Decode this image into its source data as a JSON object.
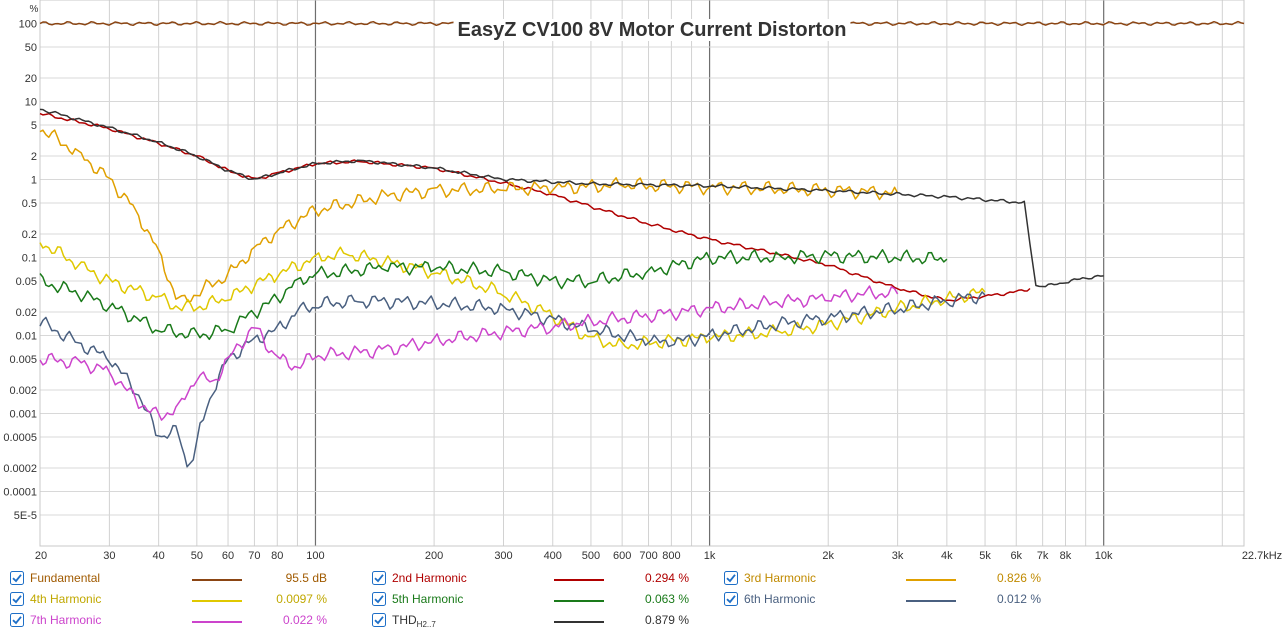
{
  "chart_data": {
    "type": "line",
    "title": "EasyZ CV100 8V Motor Current Distorton",
    "ylabel": "%",
    "xscale": "log",
    "yscale": "log",
    "xlim": [
      20,
      22700
    ],
    "ylim": [
      2e-05,
      200
    ],
    "grid": true,
    "legend_position": "bottom",
    "x_ticks": [
      {
        "v": 20,
        "t": "20"
      },
      {
        "v": 30,
        "t": "30"
      },
      {
        "v": 40,
        "t": "40"
      },
      {
        "v": 50,
        "t": "50"
      },
      {
        "v": 60,
        "t": "60"
      },
      {
        "v": 70,
        "t": "70"
      },
      {
        "v": 80,
        "t": "80"
      },
      {
        "v": 100,
        "t": "100"
      },
      {
        "v": 200,
        "t": "200"
      },
      {
        "v": 300,
        "t": "300"
      },
      {
        "v": 400,
        "t": "400"
      },
      {
        "v": 500,
        "t": "500"
      },
      {
        "v": 600,
        "t": "600"
      },
      {
        "v": 700,
        "t": "700"
      },
      {
        "v": 800,
        "t": "800"
      },
      {
        "v": 1000,
        "t": "1k"
      },
      {
        "v": 2000,
        "t": "2k"
      },
      {
        "v": 3000,
        "t": "3k"
      },
      {
        "v": 4000,
        "t": "4k"
      },
      {
        "v": 5000,
        "t": "5k"
      },
      {
        "v": 6000,
        "t": "6k"
      },
      {
        "v": 7000,
        "t": "7k"
      },
      {
        "v": 8000,
        "t": "8k"
      },
      {
        "v": 10000,
        "t": "10k"
      },
      {
        "v": 22700,
        "t": "22.7kHz"
      }
    ],
    "y_ticks": [
      {
        "v": 100,
        "t": "100"
      },
      {
        "v": 50,
        "t": "50"
      },
      {
        "v": 20,
        "t": "20"
      },
      {
        "v": 10,
        "t": "10"
      },
      {
        "v": 5,
        "t": "5"
      },
      {
        "v": 2,
        "t": "2"
      },
      {
        "v": 1,
        "t": "1"
      },
      {
        "v": 0.5,
        "t": "0.5"
      },
      {
        "v": 0.2,
        "t": "0.2"
      },
      {
        "v": 0.1,
        "t": "0.1"
      },
      {
        "v": 0.05,
        "t": "0.05"
      },
      {
        "v": 0.02,
        "t": "0.02"
      },
      {
        "v": 0.01,
        "t": "0.01"
      },
      {
        "v": 0.005,
        "t": "0.005"
      },
      {
        "v": 0.002,
        "t": "0.002"
      },
      {
        "v": 0.001,
        "t": "0.001"
      },
      {
        "v": 0.0005,
        "t": "0.0005"
      },
      {
        "v": 0.0002,
        "t": "0.0002"
      },
      {
        "v": 0.0001,
        "t": "0.0001"
      },
      {
        "v": 5e-05,
        "t": "5E-5"
      }
    ],
    "series": [
      {
        "name": "Fundamental",
        "color": "#8B4513",
        "legend_value": "95.5 dB",
        "points": [
          [
            20,
            100
          ],
          [
            22700,
            100
          ]
        ]
      },
      {
        "name": "2nd Harmonic",
        "color": "#b00000",
        "legend_value": "0.294 %",
        "points": [
          [
            20,
            7
          ],
          [
            30,
            4.5
          ],
          [
            40,
            2.9
          ],
          [
            50,
            2.0
          ],
          [
            60,
            1.3
          ],
          [
            70,
            1.0
          ],
          [
            80,
            1.2
          ],
          [
            100,
            1.6
          ],
          [
            130,
            1.7
          ],
          [
            200,
            1.4
          ],
          [
            300,
            0.9
          ],
          [
            400,
            0.64
          ],
          [
            500,
            0.45
          ],
          [
            700,
            0.27
          ],
          [
            1000,
            0.17
          ],
          [
            1500,
            0.11
          ],
          [
            2000,
            0.08
          ],
          [
            3000,
            0.04
          ],
          [
            4000,
            0.028
          ],
          [
            5000,
            0.032
          ],
          [
            6000,
            0.036
          ],
          [
            6500,
            0.04
          ]
        ]
      },
      {
        "name": "3rd Harmonic",
        "color": "#e0a000",
        "legend_value": "0.826 %",
        "points": [
          [
            20,
            4.5
          ],
          [
            25,
            2.2
          ],
          [
            30,
            1.0
          ],
          [
            35,
            0.4
          ],
          [
            40,
            0.12
          ],
          [
            45,
            0.025
          ],
          [
            50,
            0.035
          ],
          [
            60,
            0.06
          ],
          [
            70,
            0.13
          ],
          [
            80,
            0.22
          ],
          [
            100,
            0.4
          ],
          [
            150,
            0.62
          ],
          [
            200,
            0.72
          ],
          [
            300,
            0.76
          ],
          [
            400,
            0.78
          ],
          [
            600,
            0.85
          ],
          [
            1000,
            0.8
          ],
          [
            2000,
            0.73
          ],
          [
            3000,
            0.67
          ]
        ]
      },
      {
        "name": "4th Harmonic",
        "color": "#e0c800",
        "legend_value": "0.0097 %",
        "points": [
          [
            20,
            0.16
          ],
          [
            25,
            0.08
          ],
          [
            30,
            0.05
          ],
          [
            40,
            0.03
          ],
          [
            45,
            0.023
          ],
          [
            50,
            0.023
          ],
          [
            60,
            0.03
          ],
          [
            70,
            0.045
          ],
          [
            80,
            0.06
          ],
          [
            100,
            0.1
          ],
          [
            120,
            0.11
          ],
          [
            150,
            0.09
          ],
          [
            200,
            0.065
          ],
          [
            300,
            0.035
          ],
          [
            400,
            0.018
          ],
          [
            500,
            0.009
          ],
          [
            600,
            0.0075
          ],
          [
            800,
            0.0085
          ],
          [
            1000,
            0.0095
          ],
          [
            1500,
            0.011
          ],
          [
            2000,
            0.014
          ],
          [
            3000,
            0.022
          ],
          [
            4000,
            0.03
          ],
          [
            5000,
            0.036
          ]
        ]
      },
      {
        "name": "5th Harmonic",
        "color": "#1a7a1a",
        "legend_value": "0.063 %",
        "points": [
          [
            20,
            0.05
          ],
          [
            25,
            0.035
          ],
          [
            30,
            0.024
          ],
          [
            40,
            0.012
          ],
          [
            50,
            0.01
          ],
          [
            60,
            0.012
          ],
          [
            70,
            0.02
          ],
          [
            80,
            0.03
          ],
          [
            90,
            0.05
          ],
          [
            100,
            0.06
          ],
          [
            150,
            0.075
          ],
          [
            200,
            0.075
          ],
          [
            300,
            0.065
          ],
          [
            400,
            0.05
          ],
          [
            500,
            0.05
          ],
          [
            700,
            0.065
          ],
          [
            1000,
            0.1
          ],
          [
            1500,
            0.1
          ],
          [
            2000,
            0.105
          ],
          [
            3000,
            0.1
          ],
          [
            4000,
            0.095
          ]
        ]
      },
      {
        "name": "6th Harmonic",
        "color": "#4a6080",
        "legend_value": "0.012 %",
        "points": [
          [
            20,
            0.015
          ],
          [
            25,
            0.008
          ],
          [
            30,
            0.005
          ],
          [
            35,
            0.002
          ],
          [
            40,
            0.0005
          ],
          [
            45,
            0.0006
          ],
          [
            48,
            0.00015
          ],
          [
            50,
            0.0005
          ],
          [
            55,
            0.002
          ],
          [
            60,
            0.005
          ],
          [
            70,
            0.009
          ],
          [
            80,
            0.012
          ],
          [
            90,
            0.02
          ],
          [
            100,
            0.025
          ],
          [
            130,
            0.028
          ],
          [
            200,
            0.026
          ],
          [
            300,
            0.022
          ],
          [
            400,
            0.016
          ],
          [
            500,
            0.012
          ],
          [
            700,
            0.0085
          ],
          [
            800,
            0.008
          ],
          [
            1000,
            0.01
          ],
          [
            1500,
            0.014
          ],
          [
            2000,
            0.017
          ],
          [
            3000,
            0.022
          ],
          [
            4000,
            0.028
          ],
          [
            5000,
            0.033
          ]
        ]
      },
      {
        "name": "7th Harmonic",
        "color": "#cc44cc",
        "legend_value": "0.022 %",
        "points": [
          [
            20,
            0.005
          ],
          [
            25,
            0.0045
          ],
          [
            30,
            0.0035
          ],
          [
            35,
            0.0015
          ],
          [
            40,
            0.0009
          ],
          [
            45,
            0.0012
          ],
          [
            50,
            0.003
          ],
          [
            55,
            0.0025
          ],
          [
            60,
            0.005
          ],
          [
            70,
            0.013
          ],
          [
            80,
            0.005
          ],
          [
            90,
            0.004
          ],
          [
            100,
            0.0055
          ],
          [
            150,
            0.0065
          ],
          [
            200,
            0.0085
          ],
          [
            300,
            0.011
          ],
          [
            400,
            0.013
          ],
          [
            500,
            0.015
          ],
          [
            700,
            0.018
          ],
          [
            1000,
            0.022
          ],
          [
            1500,
            0.027
          ],
          [
            2000,
            0.03
          ],
          [
            2500,
            0.035
          ],
          [
            3000,
            0.034
          ]
        ]
      },
      {
        "name": "THD",
        "color": "#333333",
        "legend_value": "0.879 %",
        "points": [
          [
            20,
            8
          ],
          [
            30,
            4.6
          ],
          [
            40,
            3.0
          ],
          [
            50,
            2.0
          ],
          [
            60,
            1.3
          ],
          [
            70,
            1.0
          ],
          [
            80,
            1.2
          ],
          [
            100,
            1.6
          ],
          [
            130,
            1.75
          ],
          [
            200,
            1.4
          ],
          [
            300,
            1.0
          ],
          [
            500,
            0.88
          ],
          [
            1000,
            0.83
          ],
          [
            2000,
            0.72
          ],
          [
            4000,
            0.6
          ],
          [
            6400,
            0.5
          ],
          [
            6600,
            0.045
          ],
          [
            7000,
            0.042
          ],
          [
            8000,
            0.048
          ],
          [
            9000,
            0.055
          ],
          [
            10000,
            0.058
          ]
        ]
      }
    ]
  },
  "legend": [
    {
      "label": "Fundamental",
      "sub": "",
      "color": "#8B4513",
      "text_color": "#a05a00",
      "value": "95.5 dB",
      "checked": true
    },
    {
      "label": "2nd Harmonic",
      "sub": "",
      "color": "#b00000",
      "text_color": "#b00000",
      "value": "0.294 %",
      "checked": true
    },
    {
      "label": "3rd Harmonic",
      "sub": "",
      "color": "#e0a000",
      "text_color": "#c08a00",
      "value": "0.826 %",
      "checked": true
    },
    {
      "label": "4th Harmonic",
      "sub": "",
      "color": "#e0c800",
      "text_color": "#c0a800",
      "value": "0.0097 %",
      "checked": true
    },
    {
      "label": "5th Harmonic",
      "sub": "",
      "color": "#1a7a1a",
      "text_color": "#1a7a1a",
      "value": "0.063 %",
      "checked": true
    },
    {
      "label": "6th Harmonic",
      "sub": "",
      "color": "#4a6080",
      "text_color": "#4a6080",
      "value": "0.012 %",
      "checked": true
    },
    {
      "label": "7th Harmonic",
      "sub": "",
      "color": "#cc44cc",
      "text_color": "#cc44cc",
      "value": "0.022 %",
      "checked": true
    },
    {
      "label": "THD",
      "sub": "H2..7",
      "color": "#333333",
      "text_color": "#333333",
      "value": "0.879 %",
      "checked": true
    }
  ]
}
